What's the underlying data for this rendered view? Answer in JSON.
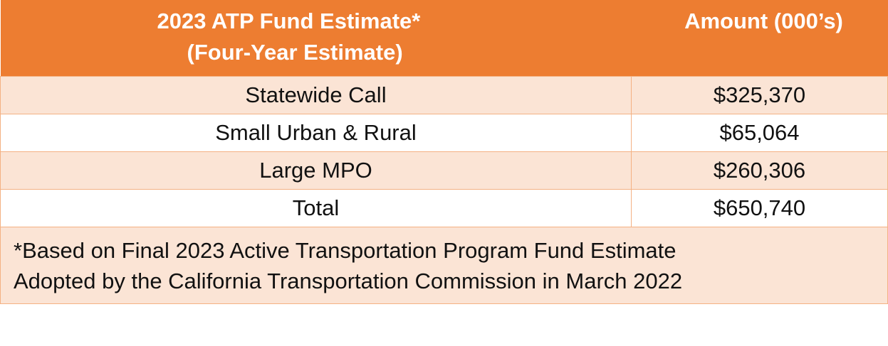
{
  "table": {
    "header": {
      "left_line1": "2023 ATP Fund Estimate*",
      "left_line2": "(Four-Year Estimate)",
      "right": "Amount (000’s)"
    },
    "rows": [
      {
        "label": "Statewide Call",
        "amount": "$325,370"
      },
      {
        "label": "Small Urban & Rural",
        "amount": "$65,064"
      },
      {
        "label": "Large MPO",
        "amount": "$260,306"
      },
      {
        "label": "Total",
        "amount": "$650,740"
      }
    ],
    "footnote": {
      "line1": "*Based on Final 2023 Active Transportation Program Fund Estimate",
      "line2": "Adopted by the California Transportation Commission in March 2022"
    }
  },
  "colors": {
    "header_bg": "#ED7D31",
    "shaded_row_bg": "#FBE4D5",
    "border": "#F4B183"
  }
}
